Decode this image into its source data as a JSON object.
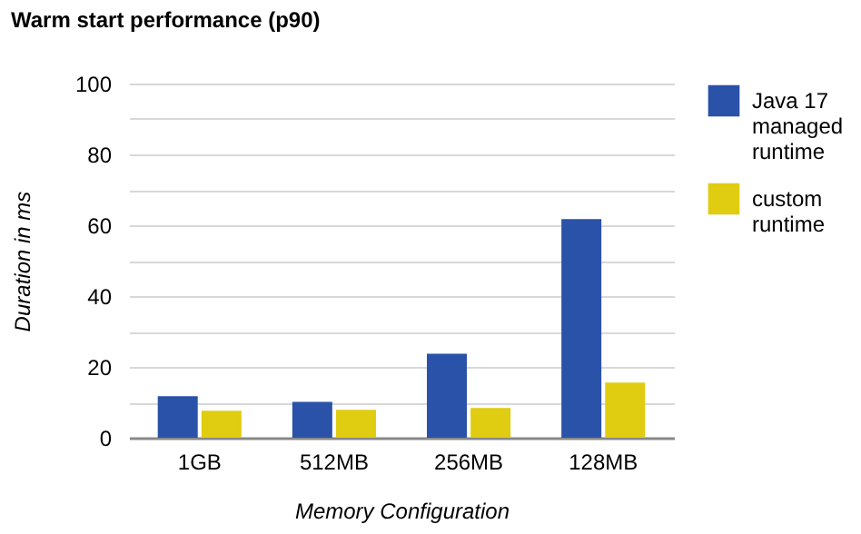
{
  "chart_data": {
    "type": "bar",
    "title": "Warm start performance (p90)",
    "xlabel": "Memory Configuration",
    "ylabel": "Duration in ms",
    "categories": [
      "1GB",
      "512MB",
      "256MB",
      "128MB"
    ],
    "series": [
      {
        "name": "Java 17 managed runtime",
        "color": "#2a52a8",
        "values": [
          11.7,
          10.1,
          23.7,
          61.7
        ]
      },
      {
        "name": "custom runtime",
        "color": "#e0cc10",
        "values": [
          7.6,
          7.9,
          8.4,
          15.6
        ]
      }
    ],
    "ylim": [
      0,
      100
    ],
    "yticks": [
      0,
      {
        "value": 10,
        "label": null
      },
      20,
      {
        "value": 30,
        "label": null
      },
      40,
      {
        "value": 50,
        "label": null
      },
      60,
      {
        "value": 70,
        "label": null
      },
      80,
      {
        "value": 90,
        "label": null
      },
      100
    ],
    "grid": "y",
    "legend": "top right"
  }
}
